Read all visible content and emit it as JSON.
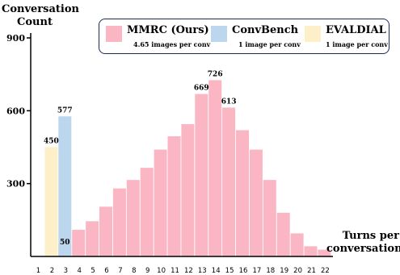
{
  "chart_data": {
    "type": "bar",
    "ylabel": "Conversation\nCount",
    "xlabel": "Turns per\nconversation",
    "categories": [
      "1",
      "2",
      "3",
      "4",
      "5",
      "6",
      "7",
      "8",
      "9",
      "10",
      "11",
      "12",
      "13",
      "14",
      "15",
      "16",
      "17",
      "18",
      "19",
      "20",
      "21",
      "22"
    ],
    "yticks": [
      300,
      600,
      900
    ],
    "ylim": [
      0,
      900
    ],
    "grid": false,
    "legend_position": "top-right",
    "series": [
      {
        "name": "MMRC (Ours)",
        "note": "4.65 images per conv",
        "color": "#fbb6c4",
        "values": [
          0,
          0,
          50,
          110,
          145,
          205,
          280,
          315,
          365,
          440,
          495,
          545,
          669,
          726,
          613,
          520,
          440,
          315,
          180,
          95,
          42,
          28
        ],
        "labels": {
          "2": "50",
          "12": "669",
          "13": "726",
          "14": "613"
        }
      },
      {
        "name": "ConvBench",
        "note": "1 image per conv",
        "color": "#bcd6ee",
        "values": [
          0,
          0,
          577,
          0,
          0,
          0,
          0,
          0,
          0,
          0,
          0,
          0,
          0,
          0,
          0,
          0,
          0,
          0,
          0,
          0,
          0,
          0
        ],
        "labels": {
          "2": "577"
        }
      },
      {
        "name": "EVALDIAL",
        "note": "1 image per conv",
        "color": "#fdefc8",
        "values": [
          0,
          450,
          0,
          0,
          0,
          0,
          0,
          0,
          0,
          0,
          0,
          0,
          0,
          0,
          0,
          0,
          0,
          0,
          0,
          0,
          0,
          0
        ],
        "labels": {
          "1": "450"
        }
      }
    ]
  }
}
